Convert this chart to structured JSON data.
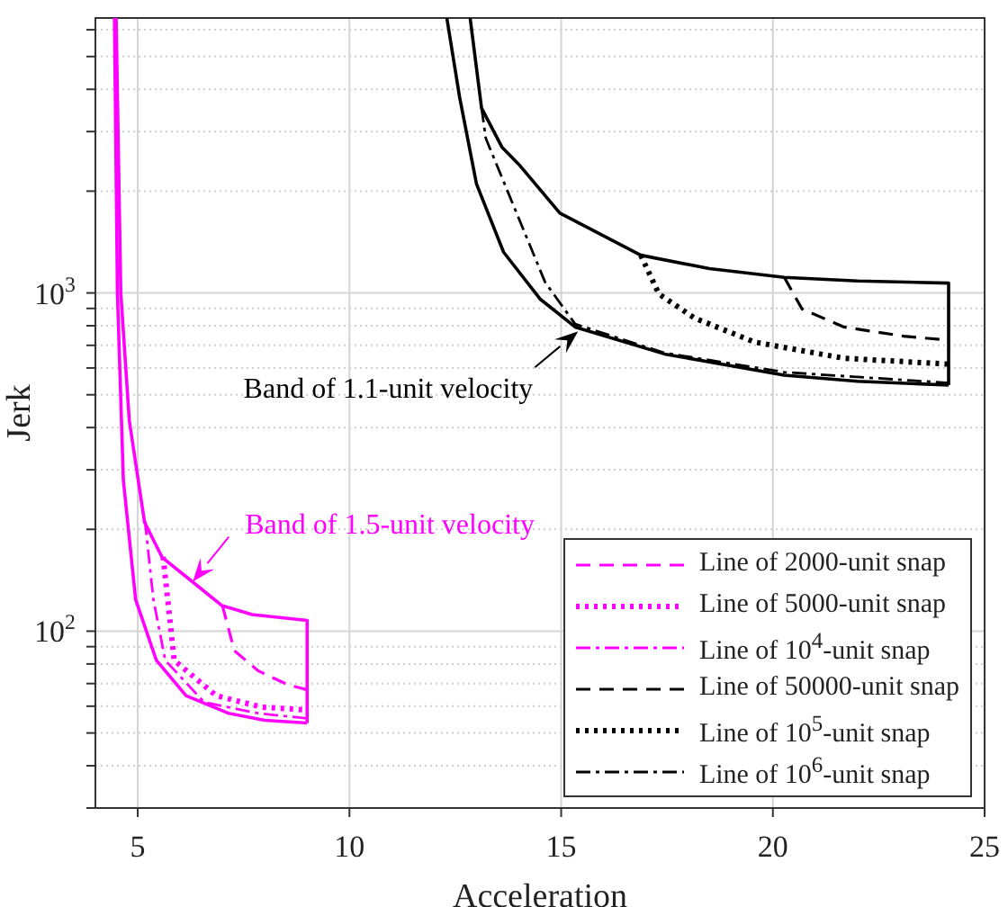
{
  "chart_data": {
    "type": "line",
    "xlabel": "Acceleration",
    "ylabel": "Jerk",
    "log": "y",
    "grid": true,
    "legend": "bottom right",
    "xlim": [
      4,
      25
    ],
    "xticks": [
      5,
      10,
      15,
      20,
      25
    ],
    "ylim": [
      30,
      6500
    ],
    "yticks": [
      {
        "value": 30,
        "label": null
      },
      {
        "value": 40,
        "label": null
      },
      {
        "value": 50,
        "label": null
      },
      {
        "value": 60,
        "label": null
      },
      {
        "value": 70,
        "label": null
      },
      {
        "value": 80,
        "label": null
      },
      {
        "value": 90,
        "label": null
      },
      {
        "value": 100,
        "label": "10$^{2}$"
      },
      {
        "value": 200,
        "label": null
      },
      {
        "value": 300,
        "label": null
      },
      {
        "value": 400,
        "label": null
      },
      {
        "value": 500,
        "label": null
      },
      {
        "value": 600,
        "label": null
      },
      {
        "value": 700,
        "label": null
      },
      {
        "value": 800,
        "label": null
      },
      {
        "value": 900,
        "label": null
      },
      {
        "value": 1000,
        "label": "10$^{3}$"
      },
      {
        "value": 2000,
        "label": null
      },
      {
        "value": 3000,
        "label": null
      },
      {
        "value": 4000,
        "label": null
      },
      {
        "value": 5000,
        "label": null
      },
      {
        "value": 6000,
        "label": null
      }
    ],
    "series": [
      {
        "name": "Line of 2000-unit snap",
        "color": "#ff00ff",
        "line_style": "dashed",
        "x": [
          7.0,
          7.28,
          7.84,
          8.55,
          9.0
        ],
        "values": [
          119,
          87.6,
          76.4,
          69.4,
          67.1
        ]
      },
      {
        "name": "Line of 5000-unit snap",
        "color": "#ff00ff",
        "line_style": "dotted",
        "x": [
          5.6,
          5.86,
          6.85,
          7.93,
          9.0
        ],
        "values": [
          166,
          82,
          64.5,
          59.6,
          58.5
        ]
      },
      {
        "name": "Line of 10$^{4}$-unit snap",
        "color": "#ff00ff",
        "line_style": "dashdot",
        "x": [
          5.17,
          5.37,
          5.65,
          6.57,
          7.84,
          9.0
        ],
        "values": [
          212,
          124,
          82,
          61.6,
          57.2,
          55.2
        ]
      },
      {
        "name": "Line of 50000-unit snap",
        "color": "#000000",
        "line_style": "dashed",
        "x": [
          20.27,
          20.69,
          21.68,
          23.09,
          24.15
        ],
        "values": [
          1112,
          896,
          793,
          745,
          725
        ]
      },
      {
        "name": "Line of 10$^{5}$-unit snap",
        "color": "#000000",
        "line_style": "dotted",
        "x": [
          16.88,
          17.31,
          18.15,
          19.56,
          21.68,
          24.15
        ],
        "values": [
          1293,
          992,
          843,
          716,
          641,
          616
        ]
      },
      {
        "name": "Line of 10$^{6}$-unit snap",
        "color": "#000000",
        "line_style": "dashdot",
        "x": [
          13.12,
          13.22,
          14.62,
          15.33,
          17.44,
          20.27,
          24.15
        ],
        "values": [
          3520,
          2865,
          1076,
          809,
          665,
          583,
          542
        ]
      },
      {
        "color": "#ff00ff",
        "line_style": "solid",
        "x": [
          4.49,
          4.6,
          4.8,
          5.16,
          5.58,
          6.29,
          6.99,
          7.7,
          9.0,
          9.0
        ],
        "values": [
          6500,
          1000,
          420,
          210,
          165,
          140,
          119,
          112,
          107.6,
          53.5
        ]
      },
      {
        "color": "#ff00ff",
        "line_style": "solid",
        "x": [
          4.45,
          4.52,
          4.66,
          4.95,
          5.44,
          6.14,
          7.14,
          8.0,
          9.0
        ],
        "values": [
          6500,
          1000,
          280,
          124,
          82,
          64.5,
          57.2,
          54.5,
          53.5
        ]
      },
      {
        "color": "#000000",
        "line_style": "solid",
        "x": [
          12.85,
          13.12,
          13.6,
          14.0,
          14.97,
          16.88,
          18.5,
          20.27,
          22.0,
          24.15,
          24.15
        ],
        "values": [
          6500,
          3520,
          2700,
          2400,
          1722,
          1293,
          1180,
          1112,
          1085,
          1069,
          534
        ]
      },
      {
        "color": "#000000",
        "line_style": "solid",
        "x": [
          12.3,
          12.6,
          13.0,
          13.64,
          14.5,
          15.33,
          17.44,
          20.27,
          22.0,
          24.15
        ],
        "values": [
          6500,
          3800,
          2100,
          1320,
          960,
          793,
          660,
          571,
          548,
          534
        ]
      }
    ],
    "annotations": [
      {
        "text": "Band of 1.1-unit velocity",
        "x": 15.4,
        "y": 770
      },
      {
        "text": "Band of 1.5-unit velocity",
        "x": 6.3,
        "y": 140
      }
    ]
  }
}
